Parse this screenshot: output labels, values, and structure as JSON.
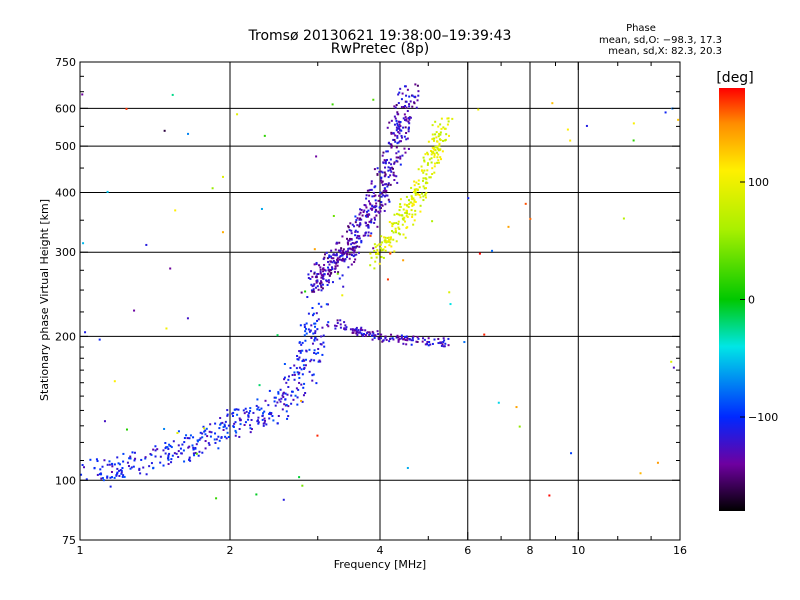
{
  "chart_data": {
    "type": "scatter",
    "title": "Tromsø 20130621 19:38:00–19:39:43",
    "subtitle": "RwPretec (8p)",
    "xlabel": "Frequency [MHz]",
    "ylabel": "Stationary phase Virtual Height [km]",
    "x_scale": "log2",
    "y_scale": "log",
    "xlim": [
      1,
      16
    ],
    "ylim": [
      75,
      750
    ],
    "x_ticks": [
      "1",
      "2",
      "4",
      "6",
      "8",
      "10",
      "16"
    ],
    "y_ticks": [
      "75",
      "100",
      "200",
      "300",
      "400",
      "500",
      "600",
      "750"
    ],
    "x_minor": [
      3,
      5,
      7,
      9,
      12,
      14
    ],
    "phase_legend": {
      "title": "Phase",
      "line_o": "mean, sd,O: −98.3, 17.3",
      "line_x": "mean, sd,X:  82.3, 20.3"
    },
    "colorbar": {
      "label": "[deg]",
      "range": [
        -180,
        180
      ],
      "ticks": [
        "100",
        "0",
        "−100"
      ]
    },
    "series": [
      {
        "name": "O-trace low (blue)",
        "phase": -110,
        "x": [
          1.05,
          1.2,
          1.4,
          1.6,
          1.8,
          2.0,
          2.2,
          2.4,
          2.6,
          2.8,
          2.9,
          3.0
        ],
        "y": [
          104,
          106,
          110,
          116,
          122,
          130,
          136,
          140,
          148,
          165,
          190,
          230
        ]
      },
      {
        "name": "O-trace F region (purple)",
        "phase": -130,
        "x": [
          2.9,
          3.1,
          3.3,
          3.5,
          3.7,
          3.9,
          4.1,
          4.3,
          4.45,
          4.6
        ],
        "y": [
          250,
          270,
          290,
          310,
          340,
          380,
          430,
          500,
          580,
          650
        ]
      },
      {
        "name": "X-trace (yellow)",
        "phase": 90,
        "x": [
          3.9,
          4.2,
          4.5,
          4.8,
          5.0,
          5.2,
          5.4
        ],
        "y": [
          290,
          320,
          360,
          400,
          450,
          500,
          560
        ]
      },
      {
        "name": "E/F1 branch (purple)",
        "phase": -125,
        "x": [
          3.2,
          3.4,
          3.6,
          3.8,
          4.0,
          4.3,
          4.6,
          5.0,
          5.4
        ],
        "y": [
          215,
          210,
          205,
          202,
          199,
          197,
          196,
          195,
          194
        ]
      }
    ]
  }
}
